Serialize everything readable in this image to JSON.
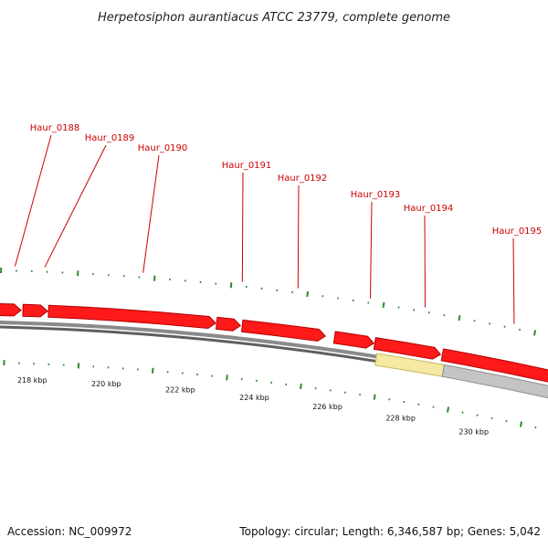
{
  "title": "Herpetosiphon aurantiacus ATCC 23779, complete genome",
  "footer": {
    "accession": "Accession: NC_009972",
    "summary": "Topology: circular; Length: 6,346,587 bp; Genes: 5,042"
  },
  "colors": {
    "gene_label": "#cc0000",
    "gene_fill": "#ff1a1a",
    "gene_stroke": "#b30000",
    "gene_highlight_fill": "#f5e9a3",
    "gene_highlight_stroke": "#c9b760",
    "gene_gray_fill": "#c4c4c4",
    "gene_gray_stroke": "#8f8f8f",
    "backbone": "#777777",
    "ticks": "#2f8a2f"
  },
  "axis": {
    "unit": "kbp",
    "labeled_ticks": [
      "218 kbp",
      "220 kbp",
      "222 kbp",
      "224 kbp",
      "226 kbp",
      "228 kbp",
      "230 kbp"
    ]
  },
  "genes": [
    {
      "label": "",
      "type": "cds"
    },
    {
      "label": "Haur_0188",
      "type": "cds"
    },
    {
      "label": "Haur_0189",
      "type": "cds"
    },
    {
      "label": "Haur_0190",
      "type": "cds"
    },
    {
      "label": "Haur_0191",
      "type": "cds"
    },
    {
      "label": "Haur_0192",
      "type": "cds"
    },
    {
      "label": "Haur_0193",
      "type": "cds"
    },
    {
      "label": "Haur_0194",
      "type": "highlight"
    },
    {
      "label": "Haur_0195",
      "type": "gray"
    },
    {
      "label": "",
      "type": "cds"
    }
  ]
}
